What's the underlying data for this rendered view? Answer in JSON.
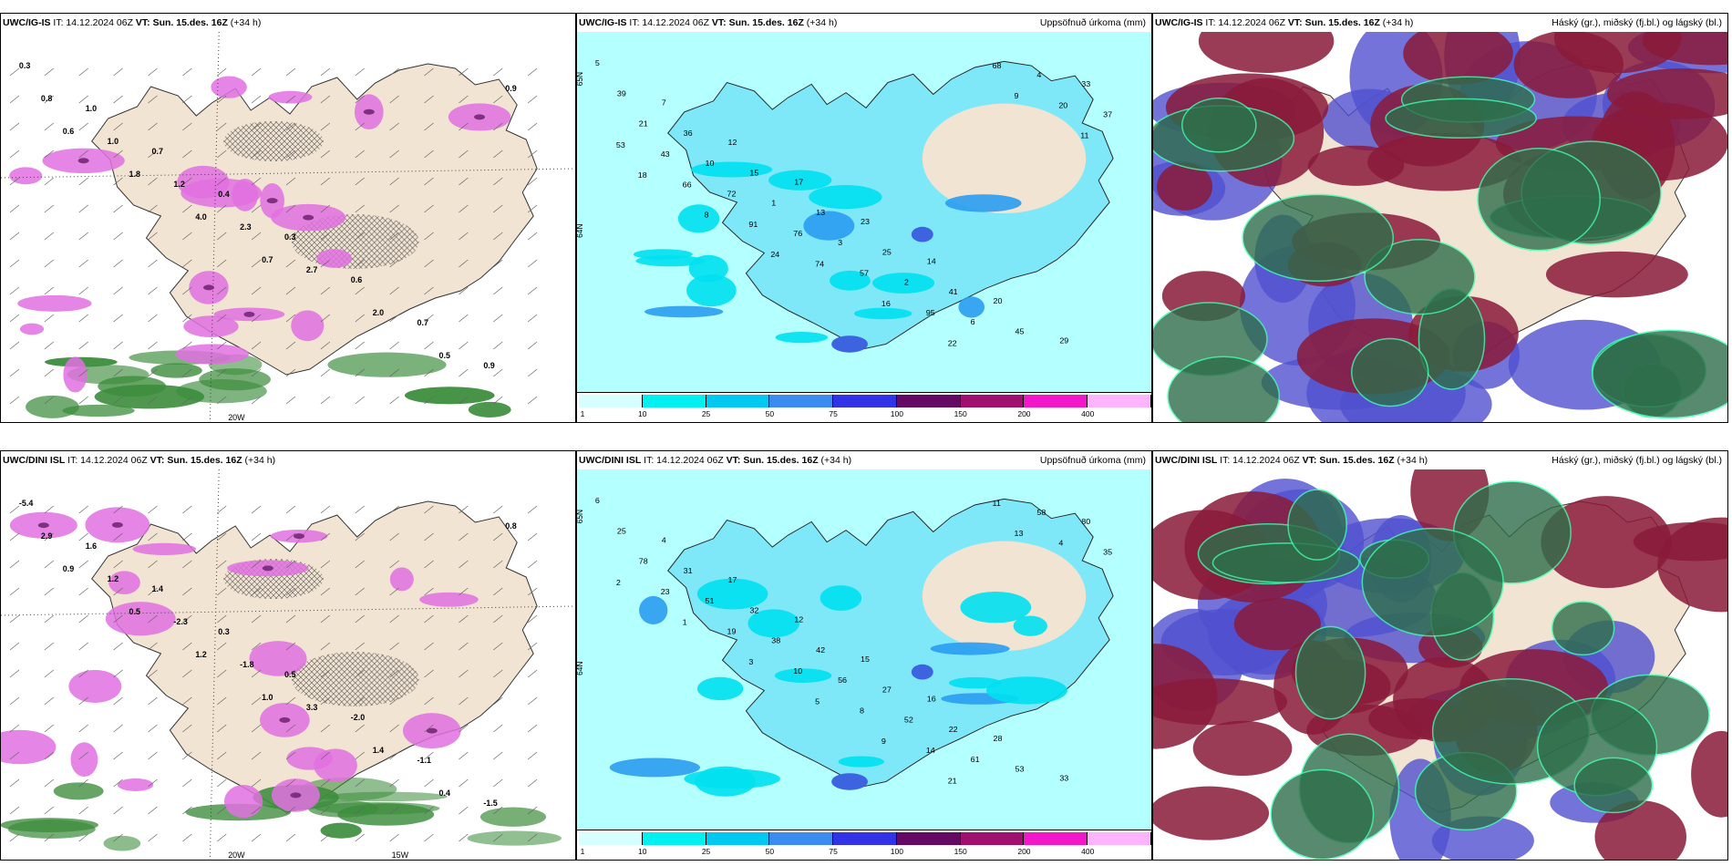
{
  "panels": [
    {
      "id": "p1",
      "model": "UWC/IG-IS",
      "it": "IT: 14.12.2024 06Z",
      "vt": "VT: Sun. 15.des. 16Z",
      "lead": "(+34 h)",
      "right_title": "",
      "kind": "snow",
      "labels": [
        "0.3",
        "1.0",
        "0.7",
        "0.4",
        "0.3",
        "0.6",
        "0.7",
        "0.9",
        "0.8",
        "1.0",
        "1.2",
        "2.3",
        "2.7",
        "2.0",
        "0.5",
        "0.9",
        "0.6",
        "1.8",
        "4.0",
        "0.7"
      ],
      "axis_labels": [
        "20W"
      ]
    },
    {
      "id": "p2",
      "model": "UWC/IG-IS",
      "it": "IT: 14.12.2024 06Z",
      "vt": "VT: Sun. 15.des. 16Z",
      "lead": "(+34 h)",
      "right_title": "Uppsöfnuð úrkoma (mm)",
      "kind": "precip",
      "labels": [
        "5",
        "7",
        "12",
        "17",
        "23",
        "14",
        "20",
        "29",
        "39",
        "36",
        "15",
        "13",
        "25",
        "41",
        "45",
        "33",
        "21",
        "10",
        "1",
        "3",
        "2",
        "6",
        "4",
        "37",
        "43",
        "72",
        "76",
        "57",
        "95",
        "68",
        "20",
        "53",
        "66",
        "91",
        "74",
        "16",
        "22",
        "9",
        "11",
        "18",
        "8",
        "24"
      ],
      "axis_labels": [
        "65N",
        "64N"
      ]
    },
    {
      "id": "p3",
      "model": "UWC/IG-IS",
      "it": "IT: 14.12.2024 06Z",
      "vt": "VT: Sun. 15.des. 16Z",
      "lead": "(+34 h)",
      "right_title": "Háský (gr.), miðský (fj.bl.) og lágský (bl.)",
      "kind": "cloud",
      "labels": [],
      "axis_labels": []
    },
    {
      "id": "p4",
      "model": "UWC/DINI ISL",
      "it": "IT: 14.12.2024 06Z",
      "vt": "VT: Sun. 15.des. 16Z",
      "lead": "(+34 h)",
      "right_title": "",
      "kind": "snow",
      "labels": [
        "-5.4",
        "1.6",
        "1.4",
        "0.3",
        "0.5",
        "-2.0",
        "-1.1",
        "-1.5",
        "2.9",
        "1.2",
        "-2.3",
        "-1.8",
        "3.3",
        "1.4",
        "0.4",
        "0.8",
        "0.9",
        "0.5",
        "1.2",
        "1.0"
      ],
      "axis_labels": [
        "20W",
        "15W"
      ]
    },
    {
      "id": "p5",
      "model": "UWC/DINI ISL",
      "it": "IT: 14.12.2024 06Z",
      "vt": "VT: Sun. 15.des. 16Z",
      "lead": "(+34 h)",
      "right_title": "Uppsöfnuð úrkoma (mm)",
      "kind": "precip",
      "labels": [
        "6",
        "4",
        "17",
        "12",
        "15",
        "16",
        "28",
        "33",
        "25",
        "31",
        "32",
        "42",
        "27",
        "22",
        "53",
        "80",
        "78",
        "51",
        "38",
        "56",
        "52",
        "61",
        "58",
        "35",
        "23",
        "19",
        "10",
        "8",
        "14",
        "11",
        "4",
        "2",
        "1",
        "3",
        "5",
        "9",
        "21",
        "13"
      ],
      "axis_labels": [
        "65N",
        "64N"
      ]
    },
    {
      "id": "p6",
      "model": "UWC/DINI ISL",
      "it": "IT: 14.12.2024 06Z",
      "vt": "VT: Sun. 15.des. 16Z",
      "lead": "(+34 h)",
      "right_title": "Háský (gr.), miðský (fj.bl.) og lágský (bl.)",
      "kind": "cloud",
      "labels": [],
      "axis_labels": []
    }
  ],
  "colorbar": {
    "ticks": [
      "1",
      "10",
      "25",
      "50",
      "75",
      "100",
      "150",
      "200",
      "400"
    ],
    "colors": [
      "#d8ffff",
      "#00f0f0",
      "#00c8f0",
      "#3c8cf0",
      "#3232e6",
      "#640a64",
      "#a0106e",
      "#f018c8",
      "#ffb4ff"
    ]
  },
  "colors": {
    "land": "#f2e4d2",
    "snow_pink": "#e070e0",
    "snow_dark": "#803080",
    "rain_green": "#3c8c3c",
    "precip_bg": "#b4ffff",
    "cloud_high": "#2e6e4a",
    "cloud_mid": "#8a1a3a",
    "cloud_low": "#5050d0"
  }
}
